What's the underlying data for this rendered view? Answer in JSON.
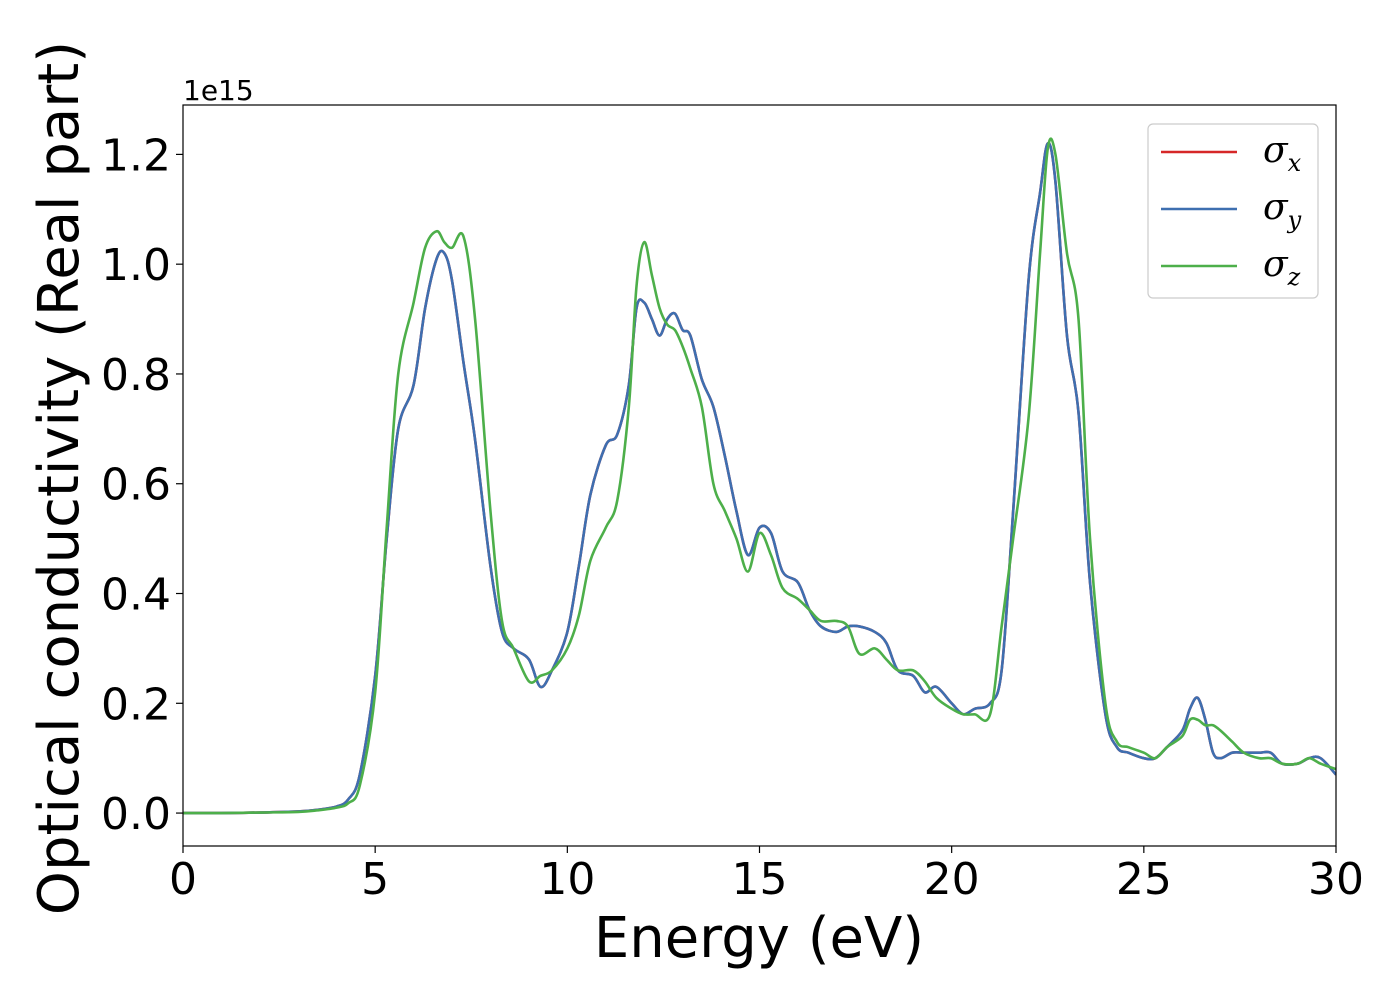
{
  "chart_data": {
    "type": "line",
    "xlabel": "Energy (eV)",
    "ylabel": "Optical conductivity (Real part)",
    "y_offset_text": "1e15",
    "xlim": [
      0,
      30
    ],
    "ylim": [
      -0.06,
      1.29
    ],
    "xticks": [
      0,
      5,
      10,
      15,
      20,
      25,
      30
    ],
    "xtick_labels": [
      "0",
      "5",
      "10",
      "15",
      "20",
      "25",
      "30"
    ],
    "yticks": [
      0.0,
      0.2,
      0.4,
      0.6,
      0.8,
      1.0,
      1.2
    ],
    "ytick_labels": [
      "0.0",
      "0.2",
      "0.4",
      "0.6",
      "0.8",
      "1.0",
      "1.2"
    ],
    "grid": false,
    "legend_position": "top-right",
    "series": [
      {
        "name": "σx",
        "label_base": "σ",
        "label_sub": "x",
        "color": "#d62728",
        "x": [
          0,
          1,
          2,
          3,
          3.5,
          4,
          4.3,
          4.6,
          5,
          5.3,
          5.6,
          6,
          6.3,
          6.6,
          6.8,
          7,
          7.3,
          7.6,
          8,
          8.3,
          8.6,
          9,
          9.3,
          9.6,
          10,
          10.3,
          10.6,
          11,
          11.3,
          11.6,
          11.8,
          12,
          12.2,
          12.4,
          12.6,
          12.8,
          13,
          13.2,
          13.5,
          13.8,
          14.1,
          14.4,
          14.7,
          15,
          15.3,
          15.6,
          16,
          16.3,
          16.6,
          17,
          17.3,
          17.6,
          18,
          18.3,
          18.6,
          19,
          19.3,
          19.6,
          20,
          20.3,
          20.6,
          21,
          21.3,
          21.6,
          22,
          22.3,
          22.5,
          22.7,
          23,
          23.3,
          23.6,
          24,
          24.3,
          24.6,
          25,
          25.3,
          25.6,
          26,
          26.2,
          26.4,
          26.6,
          26.8,
          27,
          27.3,
          27.6,
          28,
          28.3,
          28.6,
          29,
          29.3,
          29.6,
          30
        ],
        "y": [
          0.0,
          0.0,
          0.001,
          0.003,
          0.006,
          0.012,
          0.025,
          0.07,
          0.25,
          0.5,
          0.7,
          0.78,
          0.92,
          1.01,
          1.02,
          0.97,
          0.82,
          0.68,
          0.45,
          0.33,
          0.3,
          0.28,
          0.23,
          0.26,
          0.33,
          0.45,
          0.58,
          0.67,
          0.69,
          0.78,
          0.92,
          0.93,
          0.9,
          0.87,
          0.9,
          0.91,
          0.88,
          0.87,
          0.79,
          0.74,
          0.65,
          0.55,
          0.47,
          0.52,
          0.51,
          0.44,
          0.42,
          0.37,
          0.34,
          0.33,
          0.34,
          0.34,
          0.33,
          0.31,
          0.26,
          0.25,
          0.22,
          0.23,
          0.2,
          0.18,
          0.19,
          0.2,
          0.26,
          0.55,
          0.97,
          1.13,
          1.22,
          1.15,
          0.87,
          0.73,
          0.42,
          0.18,
          0.12,
          0.11,
          0.1,
          0.1,
          0.12,
          0.15,
          0.19,
          0.21,
          0.17,
          0.11,
          0.1,
          0.11,
          0.11,
          0.11,
          0.11,
          0.09,
          0.09,
          0.1,
          0.1,
          0.07
        ]
      },
      {
        "name": "σy",
        "label_base": "σ",
        "label_sub": "y",
        "color": "#3e6fb0",
        "x": [
          0,
          1,
          2,
          3,
          3.5,
          4,
          4.3,
          4.6,
          5,
          5.3,
          5.6,
          6,
          6.3,
          6.6,
          6.8,
          7,
          7.3,
          7.6,
          8,
          8.3,
          8.6,
          9,
          9.3,
          9.6,
          10,
          10.3,
          10.6,
          11,
          11.3,
          11.6,
          11.8,
          12,
          12.2,
          12.4,
          12.6,
          12.8,
          13,
          13.2,
          13.5,
          13.8,
          14.1,
          14.4,
          14.7,
          15,
          15.3,
          15.6,
          16,
          16.3,
          16.6,
          17,
          17.3,
          17.6,
          18,
          18.3,
          18.6,
          19,
          19.3,
          19.6,
          20,
          20.3,
          20.6,
          21,
          21.3,
          21.6,
          22,
          22.3,
          22.5,
          22.7,
          23,
          23.3,
          23.6,
          24,
          24.3,
          24.6,
          25,
          25.3,
          25.6,
          26,
          26.2,
          26.4,
          26.6,
          26.8,
          27,
          27.3,
          27.6,
          28,
          28.3,
          28.6,
          29,
          29.3,
          29.6,
          30
        ],
        "y": [
          0.0,
          0.0,
          0.001,
          0.003,
          0.006,
          0.012,
          0.025,
          0.07,
          0.25,
          0.5,
          0.7,
          0.78,
          0.92,
          1.01,
          1.02,
          0.97,
          0.82,
          0.68,
          0.45,
          0.33,
          0.3,
          0.28,
          0.23,
          0.26,
          0.33,
          0.45,
          0.58,
          0.67,
          0.69,
          0.78,
          0.92,
          0.93,
          0.9,
          0.87,
          0.9,
          0.91,
          0.88,
          0.87,
          0.79,
          0.74,
          0.65,
          0.55,
          0.47,
          0.52,
          0.51,
          0.44,
          0.42,
          0.37,
          0.34,
          0.33,
          0.34,
          0.34,
          0.33,
          0.31,
          0.26,
          0.25,
          0.22,
          0.23,
          0.2,
          0.18,
          0.19,
          0.2,
          0.26,
          0.55,
          0.97,
          1.13,
          1.22,
          1.15,
          0.87,
          0.73,
          0.42,
          0.18,
          0.12,
          0.11,
          0.1,
          0.1,
          0.12,
          0.15,
          0.19,
          0.21,
          0.17,
          0.11,
          0.1,
          0.11,
          0.11,
          0.11,
          0.11,
          0.09,
          0.09,
          0.1,
          0.1,
          0.07
        ]
      },
      {
        "name": "σz",
        "label_base": "σ",
        "label_sub": "z",
        "color": "#4daf4a",
        "x": [
          0,
          1,
          2,
          3,
          3.5,
          4,
          4.3,
          4.6,
          5,
          5.3,
          5.6,
          6,
          6.3,
          6.6,
          6.8,
          7,
          7.3,
          7.6,
          8,
          8.3,
          8.6,
          9,
          9.3,
          9.6,
          10,
          10.3,
          10.6,
          11,
          11.3,
          11.6,
          11.8,
          12,
          12.2,
          12.4,
          12.6,
          12.8,
          13,
          13.2,
          13.5,
          13.8,
          14.1,
          14.4,
          14.7,
          15,
          15.3,
          15.6,
          16,
          16.3,
          16.6,
          17,
          17.3,
          17.6,
          18,
          18.3,
          18.6,
          19,
          19.3,
          19.6,
          20,
          20.3,
          20.6,
          21,
          21.3,
          21.6,
          22,
          22.3,
          22.5,
          22.7,
          23,
          23.3,
          23.6,
          24,
          24.3,
          24.6,
          25,
          25.3,
          25.6,
          26,
          26.2,
          26.4,
          26.6,
          26.8,
          27,
          27.3,
          27.6,
          28,
          28.3,
          28.6,
          29,
          29.3,
          29.6,
          30
        ],
        "y": [
          0.0,
          0.0,
          0.001,
          0.002,
          0.005,
          0.01,
          0.018,
          0.05,
          0.22,
          0.52,
          0.8,
          0.93,
          1.03,
          1.06,
          1.04,
          1.03,
          1.05,
          0.9,
          0.55,
          0.35,
          0.3,
          0.24,
          0.25,
          0.26,
          0.3,
          0.36,
          0.46,
          0.52,
          0.57,
          0.74,
          0.96,
          1.04,
          0.98,
          0.92,
          0.89,
          0.88,
          0.85,
          0.81,
          0.74,
          0.6,
          0.55,
          0.5,
          0.44,
          0.51,
          0.47,
          0.41,
          0.39,
          0.37,
          0.35,
          0.35,
          0.34,
          0.29,
          0.3,
          0.28,
          0.26,
          0.26,
          0.24,
          0.21,
          0.19,
          0.18,
          0.18,
          0.18,
          0.34,
          0.5,
          0.72,
          1.02,
          1.21,
          1.2,
          1.02,
          0.9,
          0.5,
          0.2,
          0.13,
          0.12,
          0.11,
          0.1,
          0.12,
          0.14,
          0.17,
          0.17,
          0.16,
          0.16,
          0.15,
          0.13,
          0.11,
          0.1,
          0.1,
          0.09,
          0.09,
          0.1,
          0.09,
          0.08
        ]
      }
    ]
  }
}
